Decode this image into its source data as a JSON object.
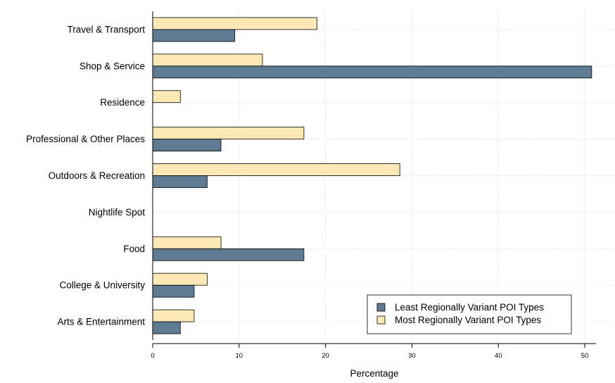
{
  "chart_data": {
    "type": "bar",
    "orientation": "horizontal",
    "categories": [
      "Travel & Transport",
      "Shop & Service",
      "Residence",
      "Professional & Other Places",
      "Outdoors & Recreation",
      "Nightlife Spot",
      "Food",
      "College & University",
      "Arts & Entertainment"
    ],
    "series": [
      {
        "name": "Least Regionally Variant POI Types",
        "color": "#5f7a93",
        "values": [
          9.5,
          50.8,
          0,
          7.9,
          6.3,
          0,
          17.5,
          4.8,
          3.2
        ]
      },
      {
        "name": "Most Regionally Variant POI Types",
        "color": "#fde9b5",
        "values": [
          19.0,
          12.7,
          3.2,
          17.5,
          28.6,
          0,
          7.9,
          6.3,
          4.8
        ]
      }
    ],
    "xlabel": "Percentage",
    "xlim": [
      0,
      53.5
    ],
    "xticks": [
      0,
      10,
      20,
      30,
      40,
      50
    ],
    "grid": true,
    "legend_position": "bottom-right"
  }
}
